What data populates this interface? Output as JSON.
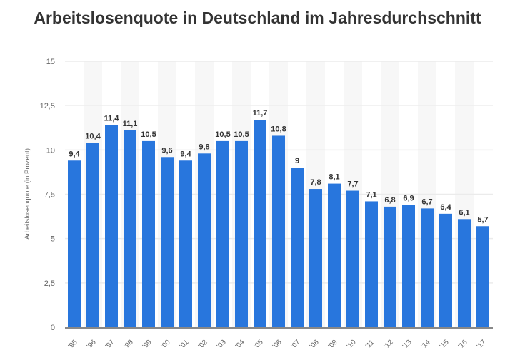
{
  "chart_data": {
    "type": "bar",
    "title": "Arbeitslosenquote in Deutschland im Jahresdurchschnitt",
    "xlabel": "",
    "ylabel": "Arbeitslosenquote (in Prozent)",
    "ylim": [
      0,
      15
    ],
    "yticks": [
      0,
      2.5,
      5,
      7.5,
      10,
      12.5,
      15
    ],
    "ytick_labels": [
      "0",
      "2,5",
      "5",
      "7,5",
      "10",
      "12,5",
      "15"
    ],
    "grid": true,
    "categories": [
      "'95",
      "'96",
      "'97",
      "'98",
      "'99",
      "'00",
      "'01",
      "'02",
      "'03",
      "'04",
      "'05",
      "'06",
      "'07",
      "'08",
      "'09",
      "'10",
      "'11",
      "'12",
      "'13",
      "'14",
      "'15",
      "'16",
      "'17"
    ],
    "values": [
      9.4,
      10.4,
      11.4,
      11.1,
      10.5,
      9.6,
      9.4,
      9.8,
      10.5,
      10.5,
      11.7,
      10.8,
      9,
      7.8,
      8.1,
      7.7,
      7.1,
      6.8,
      6.9,
      6.7,
      6.4,
      6.1,
      5.7
    ],
    "data_labels": [
      "9,4",
      "10,4",
      "11,4",
      "11,1",
      "10,5",
      "9,6",
      "9,4",
      "9,8",
      "10,5",
      "10,5",
      "11,7",
      "10,8",
      "9",
      "7,8",
      "8,1",
      "7,7",
      "7,1",
      "6,8",
      "6,9",
      "6,7",
      "6,4",
      "6,1",
      "5,7"
    ],
    "bar_color": "#2876dd"
  }
}
